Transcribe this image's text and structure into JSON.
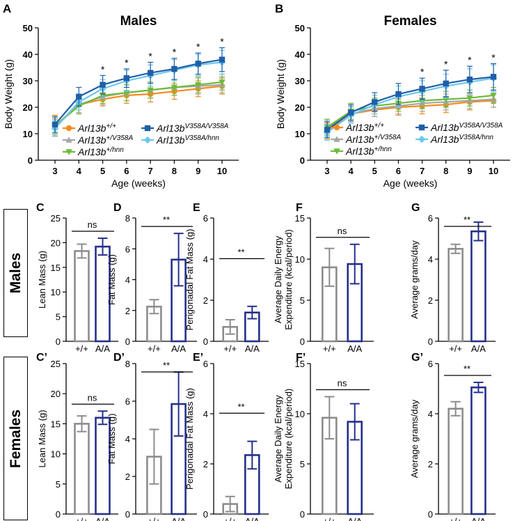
{
  "row_labels": {
    "males": "Males",
    "females": "Females"
  },
  "chart_data": [
    {
      "id": "A",
      "type": "line",
      "title": "Males",
      "xlabel": "Age (weeks)",
      "ylabel": "Body Weight (g)",
      "x": [
        3,
        4,
        5,
        6,
        7,
        8,
        9,
        10
      ],
      "ylim": [
        0,
        50
      ],
      "yticks": [
        0,
        10,
        20,
        30,
        40,
        50
      ],
      "series": [
        {
          "name": "Arl13b",
          "sup": "+/+",
          "color": "#f28c1e",
          "marker": "circle",
          "values": [
            13,
            21,
            23,
            24.5,
            25,
            26,
            27,
            28
          ],
          "err": [
            4,
            3,
            2.5,
            3,
            3,
            3,
            3,
            3
          ]
        },
        {
          "name": "Arl13b",
          "sup": "V358A/V358A",
          "color": "#1f5fa8",
          "marker": "square",
          "values": [
            13.5,
            24,
            28.5,
            31,
            33,
            34.5,
            36.5,
            38
          ],
          "err": [
            3,
            3.5,
            3.5,
            3.5,
            4,
            4,
            4,
            4.5
          ]
        },
        {
          "name": "Arl13b",
          "sup": "+/V358A",
          "color": "#a6a6a6",
          "marker": "triangle",
          "values": [
            12.5,
            21,
            24,
            25.5,
            26.5,
            27.5,
            28,
            28.5
          ],
          "err": [
            3,
            3,
            3,
            3,
            3,
            3,
            3,
            3
          ]
        },
        {
          "name": "Arl13b",
          "sup": "V358A/hnn",
          "color": "#6cc7ef",
          "marker": "diamond",
          "values": [
            12,
            22,
            27,
            30,
            32,
            34,
            36,
            37
          ],
          "err": [
            3,
            3,
            3.5,
            4,
            4,
            4,
            4,
            4.5
          ]
        },
        {
          "name": "Arl13b",
          "sup": "+/hnn",
          "color": "#6dbb3a",
          "marker": "triangle-down",
          "values": [
            13,
            20.5,
            24.5,
            25.5,
            26.5,
            27.5,
            28.5,
            29.5
          ],
          "err": [
            3,
            3,
            3,
            3,
            3,
            3,
            3,
            3
          ]
        }
      ],
      "sig": [
        {
          "x": 5,
          "label": "*"
        },
        {
          "x": 6,
          "label": "*"
        },
        {
          "x": 7,
          "label": "*"
        },
        {
          "x": 8,
          "label": "*"
        },
        {
          "x": 9,
          "label": "*"
        },
        {
          "x": 10,
          "label": "*"
        }
      ]
    },
    {
      "id": "B",
      "type": "line",
      "title": "Females",
      "xlabel": "Age (weeks)",
      "ylabel": "Body Weight (g)",
      "x": [
        3,
        4,
        5,
        6,
        7,
        8,
        9,
        10
      ],
      "ylim": [
        0,
        50
      ],
      "yticks": [
        0,
        10,
        20,
        30,
        40,
        50
      ],
      "series": [
        {
          "name": "Arl13b",
          "sup": "+/+",
          "color": "#f28c1e",
          "marker": "circle",
          "values": [
            11,
            17.5,
            19,
            20,
            20.5,
            21,
            22,
            22.5
          ],
          "err": [
            3,
            3,
            2.5,
            3,
            3,
            3,
            3,
            2.5
          ]
        },
        {
          "name": "Arl13b",
          "sup": "V358A/V358A",
          "color": "#1f5fa8",
          "marker": "square",
          "values": [
            11.5,
            18,
            22,
            25,
            27,
            29,
            30.5,
            31.5
          ],
          "err": [
            3,
            3,
            3.5,
            4,
            4,
            5,
            5,
            5
          ]
        },
        {
          "name": "Arl13b",
          "sup": "+/V358A",
          "color": "#a6a6a6",
          "marker": "triangle",
          "values": [
            12,
            17.5,
            19.5,
            20.5,
            21.5,
            22,
            22.5,
            23
          ],
          "err": [
            3,
            3,
            3,
            3,
            3,
            3,
            3,
            3
          ]
        },
        {
          "name": "Arl13b",
          "sup": "V358A/hnn",
          "color": "#6cc7ef",
          "marker": "diamond",
          "values": [
            10.5,
            17,
            21,
            24,
            26,
            28,
            29.5,
            31
          ],
          "err": [
            3,
            3,
            3.5,
            4,
            4,
            4.5,
            5,
            5
          ]
        },
        {
          "name": "Arl13b",
          "sup": "+/hnn",
          "color": "#6dbb3a",
          "marker": "triangle-down",
          "values": [
            12.5,
            18.5,
            20.5,
            21.5,
            22.5,
            23,
            23.5,
            24.5
          ],
          "err": [
            3,
            3,
            3,
            3,
            3,
            3,
            3,
            3
          ]
        }
      ],
      "sig": [
        {
          "x": 7,
          "label": "*"
        },
        {
          "x": 8,
          "label": "*"
        },
        {
          "x": 9,
          "label": "*"
        },
        {
          "x": 10,
          "label": "*"
        }
      ]
    },
    {
      "id": "C",
      "type": "bar",
      "ylabel": "Lean Mass (g)",
      "categories": [
        "+/+",
        "A/A"
      ],
      "values": [
        18.3,
        19.2
      ],
      "err": [
        1.4,
        1.7
      ],
      "ylim": [
        0,
        25
      ],
      "yticks": [
        0,
        5,
        10,
        15,
        20,
        25
      ],
      "sig": "ns"
    },
    {
      "id": "D",
      "type": "bar",
      "ylabel": "Fat Mass (g)",
      "categories": [
        "+/+",
        "A/A"
      ],
      "values": [
        2.25,
        5.3
      ],
      "err": [
        0.45,
        1.7
      ],
      "ylim": [
        0,
        8
      ],
      "yticks": [
        0,
        2,
        4,
        6,
        8
      ],
      "sig": "**"
    },
    {
      "id": "E",
      "type": "bar",
      "ylabel": "Perigonadal Fat Mass (g)",
      "categories": [
        "+/+",
        "A/A"
      ],
      "values": [
        0.7,
        1.4
      ],
      "err": [
        0.35,
        0.3
      ],
      "ylim": [
        0,
        6
      ],
      "yticks": [
        0,
        2,
        4,
        6
      ],
      "sig": "**"
    },
    {
      "id": "F",
      "type": "bar",
      "ylabel": [
        "Average Daily Energy",
        "Expenditure (kcal/period)"
      ],
      "categories": [
        "+/+",
        "A/A"
      ],
      "values": [
        9.0,
        9.4
      ],
      "err": [
        2.3,
        2.4
      ],
      "ylim": [
        0,
        15
      ],
      "yticks": [
        0,
        5,
        10,
        15
      ],
      "sig": "ns"
    },
    {
      "id": "G",
      "type": "bar",
      "ylabel": "Average grams/day",
      "categories": [
        "+/+",
        "A/A"
      ],
      "values": [
        4.5,
        5.35
      ],
      "err": [
        0.22,
        0.45
      ],
      "ylim": [
        0,
        6
      ],
      "yticks": [
        0,
        2,
        4,
        6
      ],
      "sig": "**"
    },
    {
      "id": "C’",
      "type": "bar",
      "ylabel": "Lean Mass (g)",
      "categories": [
        "+/+",
        "A/A"
      ],
      "values": [
        15.0,
        16.0
      ],
      "err": [
        1.3,
        1.1
      ],
      "ylim": [
        0,
        25
      ],
      "yticks": [
        0,
        5,
        10,
        15,
        20,
        25
      ],
      "sig": "ns"
    },
    {
      "id": "D’",
      "type": "bar",
      "ylabel": "Fat Mass (g)",
      "categories": [
        "+/+",
        "A/A"
      ],
      "values": [
        3.05,
        5.85
      ],
      "err": [
        1.45,
        1.7
      ],
      "ylim": [
        0,
        8
      ],
      "yticks": [
        0,
        2,
        4,
        6,
        8
      ],
      "sig": "**"
    },
    {
      "id": "E’",
      "type": "bar",
      "ylabel": "Perigonadal Fat Mass (g)",
      "categories": [
        "+/+",
        "A/A"
      ],
      "values": [
        0.4,
        2.35
      ],
      "err": [
        0.3,
        0.55
      ],
      "ylim": [
        0,
        6
      ],
      "yticks": [
        0,
        2,
        4,
        6
      ],
      "sig": "**"
    },
    {
      "id": "F’",
      "type": "bar",
      "ylabel": [
        "Average Daily Energy",
        "Expenditure (kcal/period)"
      ],
      "categories": [
        "+/+",
        "A/A"
      ],
      "values": [
        9.6,
        9.2
      ],
      "err": [
        2.1,
        1.8
      ],
      "ylim": [
        0,
        15
      ],
      "yticks": [
        0,
        5,
        10,
        15
      ],
      "sig": "ns"
    },
    {
      "id": "G’",
      "type": "bar",
      "ylabel": "Average grams/day",
      "categories": [
        "+/+",
        "A/A"
      ],
      "values": [
        4.2,
        5.05
      ],
      "err": [
        0.28,
        0.2
      ],
      "ylim": [
        0,
        6
      ],
      "yticks": [
        0,
        2,
        4,
        6
      ],
      "sig": "**"
    }
  ]
}
